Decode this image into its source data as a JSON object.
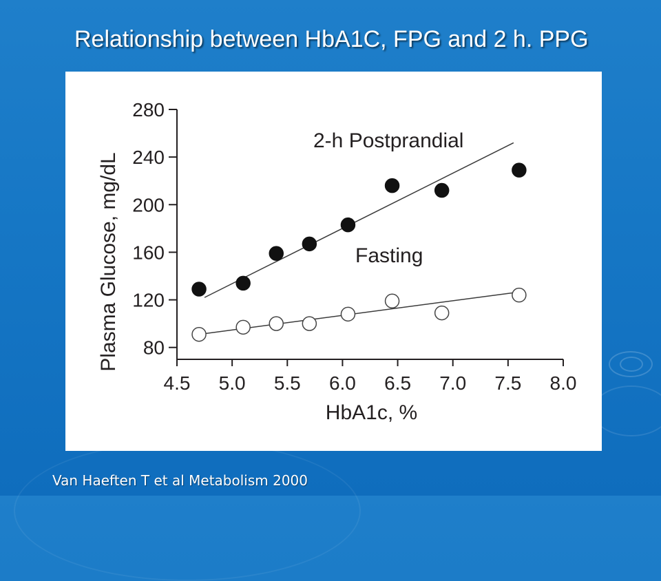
{
  "slide": {
    "title": "Relationship between HbA1C, FPG and 2 h. PPG",
    "citation": "Van Haeften T et al Metabolism 2000"
  },
  "chart_data": {
    "type": "scatter",
    "title": "",
    "xlabel": "HbA1c, %",
    "ylabel": "Plasma Glucose, mg/dL",
    "xlim": [
      4.5,
      8.0
    ],
    "ylim": [
      70,
      280
    ],
    "x_ticks": [
      "4.5",
      "5.0",
      "5.5",
      "6.0",
      "6.5",
      "7.0",
      "7.5",
      "8.0"
    ],
    "y_ticks": [
      "80",
      "120",
      "160",
      "200",
      "240",
      "280"
    ],
    "grid": false,
    "legend": "none",
    "series": [
      {
        "name": "2-h Postprandial",
        "marker": "filled-circle",
        "x": [
          4.7,
          5.1,
          5.4,
          5.7,
          6.05,
          6.45,
          6.9,
          7.6
        ],
        "y": [
          129,
          134,
          159,
          167,
          183,
          216,
          212,
          229
        ],
        "trendline": [
          [
            4.75,
            122
          ],
          [
            7.55,
            252
          ]
        ]
      },
      {
        "name": "Fasting",
        "marker": "open-circle",
        "x": [
          4.7,
          5.1,
          5.4,
          5.7,
          6.05,
          6.45,
          6.9,
          7.6
        ],
        "y": [
          91,
          97,
          100,
          100,
          108,
          119,
          109,
          124
        ],
        "trendline": [
          [
            4.7,
            91
          ],
          [
            7.55,
            126
          ]
        ]
      }
    ]
  }
}
